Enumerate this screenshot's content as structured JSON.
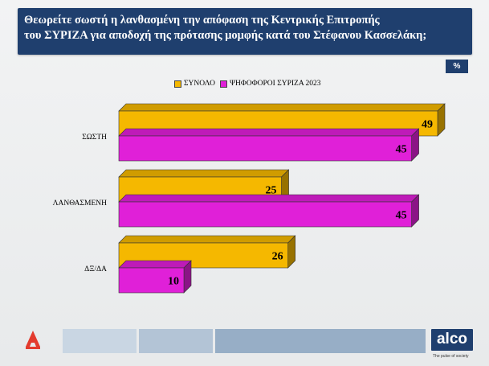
{
  "header": {
    "title": "Θεωρείτε σωστή η λανθασμένη την απόφαση της Κεντρικής  Επιτροπής\nτου ΣΥΡΙΖΑ για αποδοχή της πρότασης μομφής κατά του Στέφανου Κασσελάκη;"
  },
  "unit": "%",
  "brand": {
    "name": "alco",
    "tagline": "The pulse of society"
  },
  "colors": {
    "header_bg": "#1f3f6e",
    "series_total": "#f5b800",
    "series_syriza": "#e020d8"
  },
  "chart_data": {
    "type": "bar",
    "orientation": "horizontal",
    "categories": [
      "ΣΩΣΤΗ",
      "ΛΑΝΘΑΣΜΕΝΗ",
      "ΔΞ/ΔΑ"
    ],
    "series": [
      {
        "name": "ΣΥΝΟΛΟ",
        "values": [
          49,
          25,
          26
        ],
        "color": "#f5b800"
      },
      {
        "name": "ΨΗΦΟΦΟΡΟΙ ΣΥΡΙΖΑ 2023",
        "values": [
          45,
          45,
          10
        ],
        "color": "#e020d8"
      }
    ],
    "title": "",
    "xlabel": "",
    "ylabel": "",
    "xlim": [
      0,
      50
    ],
    "grid": false,
    "legend_position": "top",
    "data_labels": true
  }
}
